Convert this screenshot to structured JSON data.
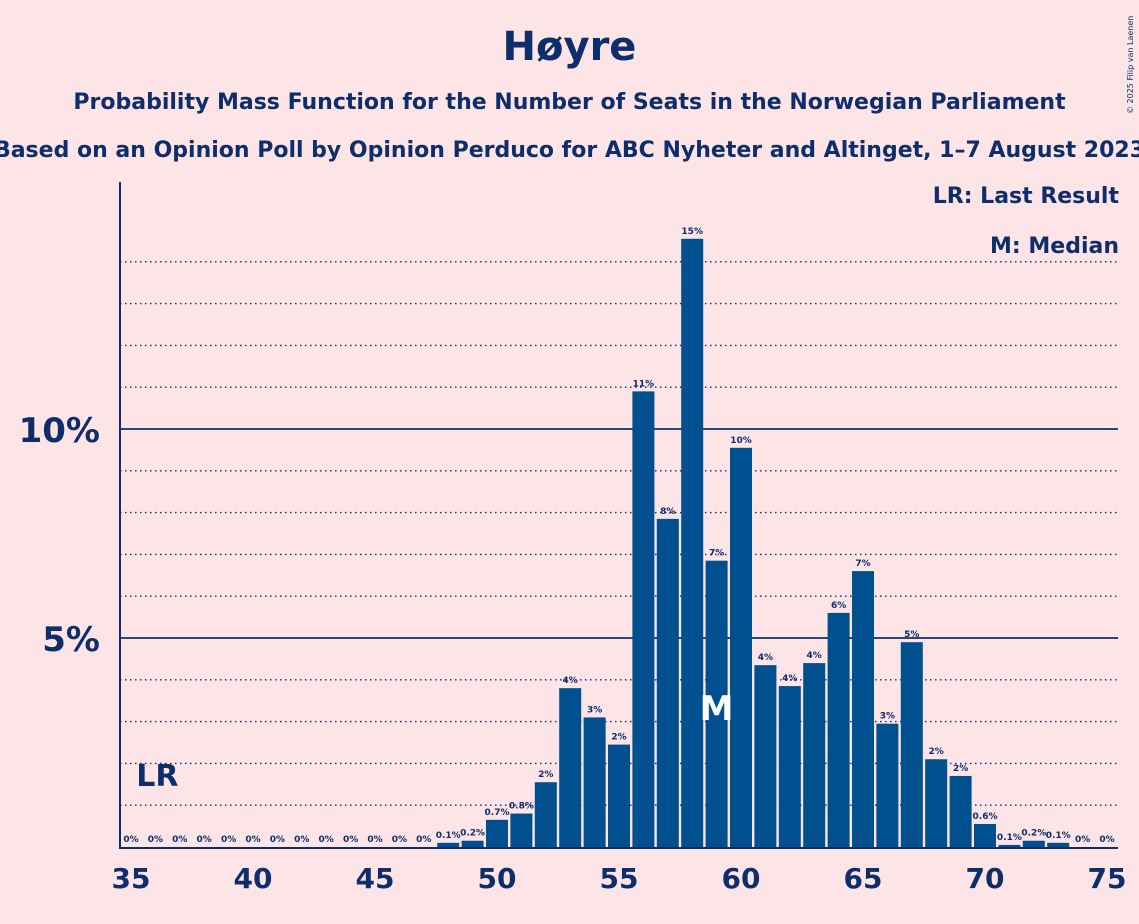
{
  "title": "Høyre",
  "subtitle": "Probability Mass Function for the Number of Seats in the Norwegian Parliament",
  "subtitle2": "Based on an Opinion Poll by Opinion Perduco for ABC Nyheter and Altinget, 1–7 August 2023",
  "copyright": "© 2025 Filip van Laenen",
  "legend": {
    "lr": "LR: Last Result",
    "median": "M: Median"
  },
  "markers": {
    "lr_label": "LR",
    "median_label": "M"
  },
  "colors": {
    "background": "#fde4e6",
    "bar": "#00508f",
    "text": "#0d2d6b"
  },
  "chart_data": {
    "type": "bar",
    "x": [
      35,
      36,
      37,
      38,
      39,
      40,
      41,
      42,
      43,
      44,
      45,
      46,
      47,
      48,
      49,
      50,
      51,
      52,
      53,
      54,
      55,
      56,
      57,
      58,
      59,
      60,
      61,
      62,
      63,
      64,
      65,
      66,
      67,
      68,
      69,
      70,
      71,
      72,
      73,
      74,
      75
    ],
    "values": [
      0,
      0,
      0,
      0,
      0,
      0,
      0,
      0,
      0,
      0,
      0,
      0,
      0,
      0.1,
      0.15,
      0.65,
      0.8,
      1.55,
      3.8,
      3.1,
      2.45,
      10.9,
      7.85,
      14.55,
      6.85,
      9.55,
      4.35,
      3.85,
      4.4,
      5.6,
      6.6,
      2.95,
      4.9,
      2.1,
      1.7,
      0.55,
      0.05,
      0.15,
      0.1,
      0,
      0
    ],
    "labels": [
      "0%",
      "0%",
      "0%",
      "0%",
      "0%",
      "0%",
      "0%",
      "0%",
      "0%",
      "0%",
      "0%",
      "0%",
      "0%",
      "0.1%",
      "0.2%",
      "0.7%",
      "0.8%",
      "2%",
      "4%",
      "3%",
      "2%",
      "11%",
      "8%",
      "15%",
      "7%",
      "10%",
      "4%",
      "4%",
      "4%",
      "6%",
      "7%",
      "3%",
      "5%",
      "2%",
      "2%",
      "0.6%",
      "0.1%",
      "0.2%",
      "0.1%",
      "0%",
      "0%"
    ],
    "xticks": [
      35,
      40,
      45,
      50,
      55,
      60,
      65,
      70,
      75
    ],
    "yticks": [
      {
        "value": 5,
        "label": "5%"
      },
      {
        "value": 10,
        "label": "10%"
      }
    ],
    "ylim": [
      0,
      15.8
    ],
    "last_result": 36,
    "median": 59
  }
}
